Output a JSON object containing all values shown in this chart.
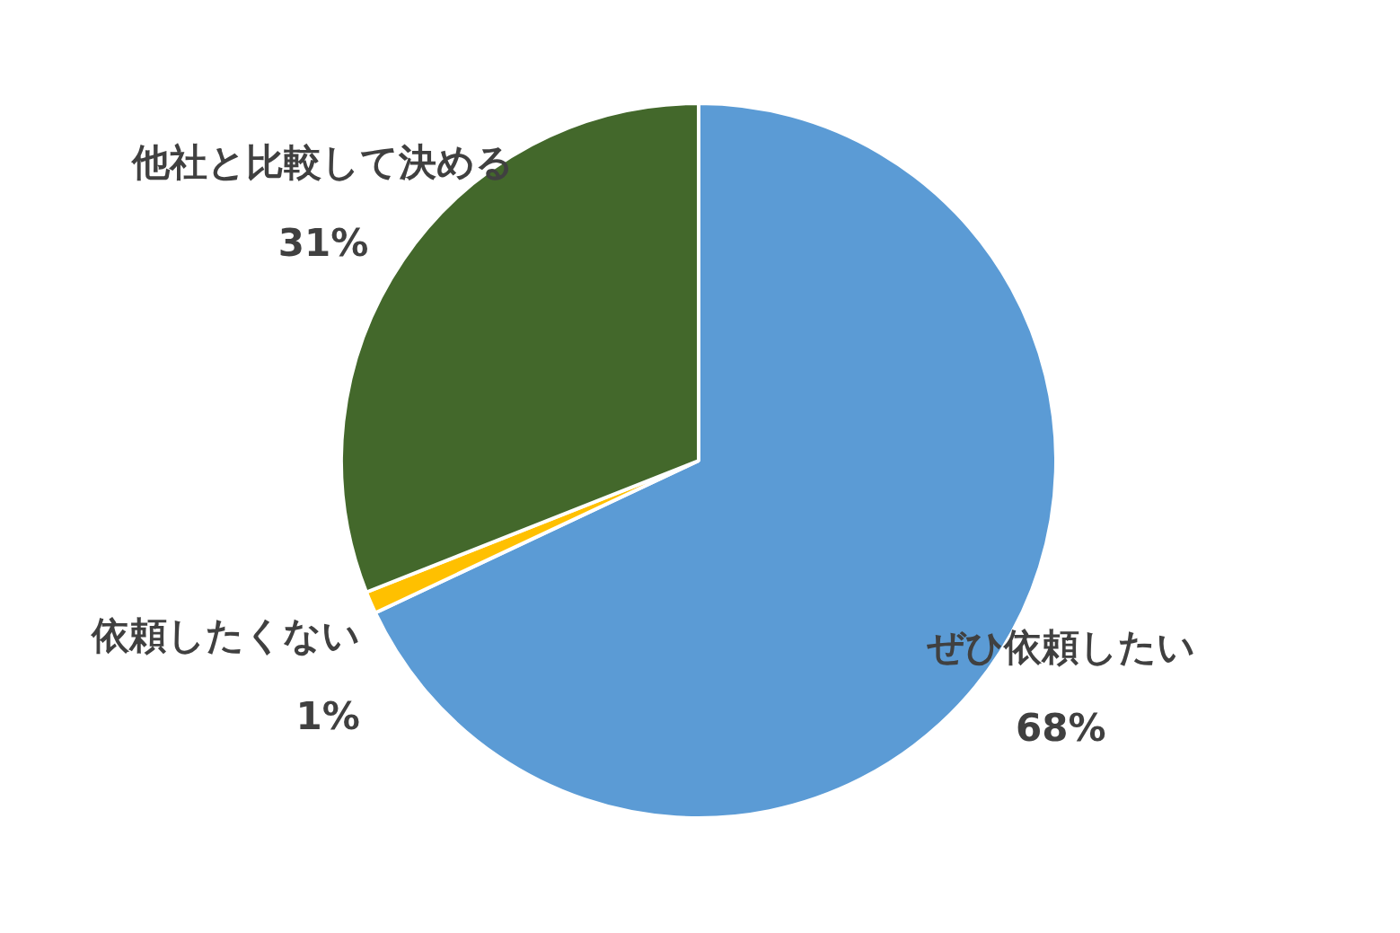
{
  "chart_data": {
    "type": "pie",
    "categories": [
      "ぜひ依頼したい",
      "依頼したくない",
      "他社と比較して決める"
    ],
    "values": [
      68,
      1,
      31
    ],
    "colors": [
      "#5b9bd5",
      "#ffc000",
      "#43682b"
    ],
    "value_labels": [
      "68%",
      "1%",
      "31%"
    ],
    "legend": false
  }
}
